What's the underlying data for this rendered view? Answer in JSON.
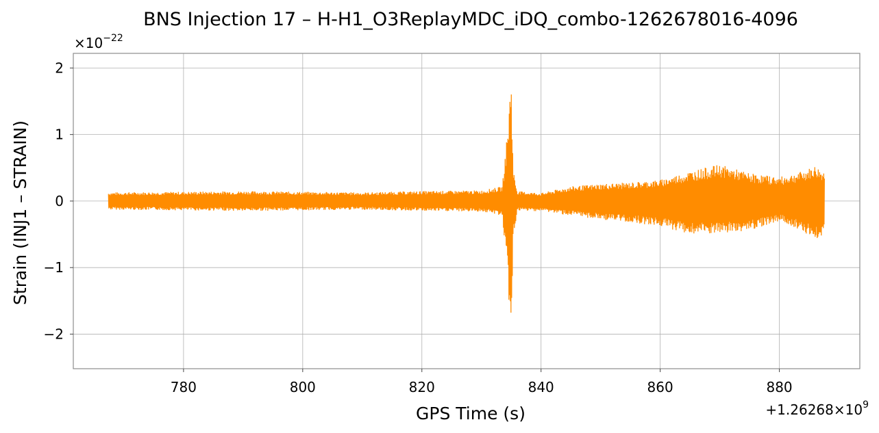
{
  "chart_data": {
    "type": "line",
    "title": "BNS Injection 17 – H-H1_O3ReplayMDC_iDQ_combo-1262678016-4096",
    "xlabel": "GPS Time (s)",
    "ylabel": "Strain (INJ1 – STRAIN)",
    "x_offset_text": "+1.26268×10",
    "x_offset_exponent": "9",
    "y_scale_text": "×10",
    "y_scale_exponent": "−22",
    "xlim": [
      761.5,
      893.5
    ],
    "ylim": [
      -2.52,
      2.22
    ],
    "x_ticks": [
      780,
      800,
      820,
      840,
      860,
      880
    ],
    "x_tick_labels": [
      "780",
      "800",
      "820",
      "840",
      "860",
      "880"
    ],
    "y_ticks": [
      2,
      1,
      0,
      -1,
      -2
    ],
    "y_tick_labels": [
      "2",
      "1",
      "0",
      "−1",
      "−2"
    ],
    "grid": true,
    "series_color": "#ff8c00",
    "series": [
      {
        "x_start": 767.4,
        "x_end": 887.6,
        "envelope_upper": [
          [
            767.4,
            0.13
          ],
          [
            780,
            0.14
          ],
          [
            790,
            0.15
          ],
          [
            800,
            0.14
          ],
          [
            810,
            0.13
          ],
          [
            820,
            0.15
          ],
          [
            830,
            0.16
          ],
          [
            833.5,
            0.22
          ],
          [
            834.5,
            1.2
          ],
          [
            835.0,
            2.0
          ],
          [
            835.3,
            0.5
          ],
          [
            836,
            0.15
          ],
          [
            840,
            0.12
          ],
          [
            845,
            0.22
          ],
          [
            850,
            0.26
          ],
          [
            855,
            0.28
          ],
          [
            860,
            0.32
          ],
          [
            865,
            0.45
          ],
          [
            870,
            0.55
          ],
          [
            875,
            0.42
          ],
          [
            880,
            0.36
          ],
          [
            884,
            0.45
          ],
          [
            886,
            0.53
          ],
          [
            887.6,
            0.44
          ]
        ],
        "envelope_lower": [
          [
            767.4,
            -0.13
          ],
          [
            780,
            -0.14
          ],
          [
            790,
            -0.15
          ],
          [
            800,
            -0.14
          ],
          [
            810,
            -0.13
          ],
          [
            820,
            -0.15
          ],
          [
            830,
            -0.16
          ],
          [
            833.5,
            -0.22
          ],
          [
            834.5,
            -1.3
          ],
          [
            835.0,
            -2.32
          ],
          [
            835.3,
            -0.6
          ],
          [
            836,
            -0.15
          ],
          [
            840,
            -0.15
          ],
          [
            845,
            -0.22
          ],
          [
            850,
            -0.28
          ],
          [
            855,
            -0.32
          ],
          [
            860,
            -0.38
          ],
          [
            865,
            -0.5
          ],
          [
            870,
            -0.5
          ],
          [
            875,
            -0.44
          ],
          [
            880,
            -0.3
          ],
          [
            884,
            -0.45
          ],
          [
            886,
            -0.6
          ],
          [
            887.6,
            -0.48
          ]
        ]
      }
    ]
  }
}
